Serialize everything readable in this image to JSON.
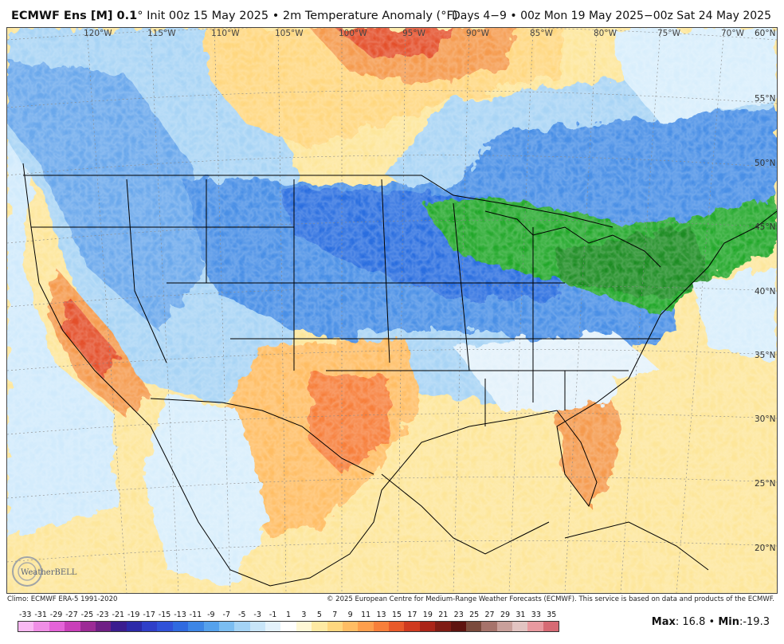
{
  "header": {
    "model": "ECMWF Ens [M] 0.1",
    "degree": "°",
    "init": "Init 00z 15 May 2025",
    "bullet": "•",
    "product": "2m Temperature Anomaly (°F)",
    "valid": "Days 4−9 • 00z Mon 19 May 2025−00z Sat 24 May 2025"
  },
  "map": {
    "lon_labels": [
      "120°W",
      "115°W",
      "110°W",
      "105°W",
      "100°W",
      "95°W",
      "90°W",
      "85°W",
      "80°W",
      "75°W",
      "70°W"
    ],
    "lat_labels": [
      "60°N",
      "55°N",
      "50°N",
      "45°N",
      "40°N",
      "35°N",
      "30°N",
      "25°N",
      "20°N"
    ],
    "colors": {
      "ocean_warm": "#fde69a",
      "ocean_light": "#fff3c4",
      "cold_deep": "#1e5fd8",
      "cold_mid": "#4a8fe6",
      "cold_light": "#a8d4f5",
      "cold_pale": "#d8eefc",
      "warm_orange": "#f59a4d",
      "warm_red": "#e4502a",
      "anomaly_green": "#22a82a",
      "border": "#000000"
    }
  },
  "footer": {
    "climo": "Climo: ECMWF ERA-5 1991-2020",
    "copyright": "© 2025 European Centre for Medium-Range Weather Forecasts (ECMWF). This service is based on data and products of the ECMWF."
  },
  "colorbar": {
    "labels": [
      "-33",
      "-31",
      "-29",
      "-27",
      "-25",
      "-23",
      "-21",
      "-19",
      "-17",
      "-15",
      "-13",
      "-11",
      "-9",
      "-7",
      "-5",
      "-3",
      "-1",
      "1",
      "3",
      "5",
      "7",
      "9",
      "11",
      "13",
      "15",
      "17",
      "19",
      "21",
      "23",
      "25",
      "27",
      "29",
      "31",
      "33",
      "35"
    ],
    "colors": [
      "#f9b8f2",
      "#f08ee6",
      "#e463d8",
      "#c93fb9",
      "#9c2b96",
      "#6f1f85",
      "#3b1d8f",
      "#2c2aa8",
      "#2f3fc8",
      "#3052d8",
      "#2f6ae0",
      "#3d86e6",
      "#55a1ec",
      "#7bbdf1",
      "#a4d3f5",
      "#c8e5f8",
      "#e4f2fb",
      "#ffffff",
      "#fff8d6",
      "#ffeaa3",
      "#ffd77f",
      "#ffbd64",
      "#fd9f4d",
      "#f77f3a",
      "#e85a2a",
      "#cf3a1f",
      "#aa2518",
      "#7f1c14",
      "#5e1410",
      "#7a4a3c",
      "#a6736b",
      "#c9a09b",
      "#e2c4c2",
      "#e89aa0",
      "#d66a74"
    ]
  },
  "stats": {
    "max_label": "Max",
    "max_value": ": 16.8",
    "sep": "•",
    "min_label": "Min",
    "min_value": ":-19.3"
  },
  "logo": {
    "text": "WeatherBELL"
  }
}
